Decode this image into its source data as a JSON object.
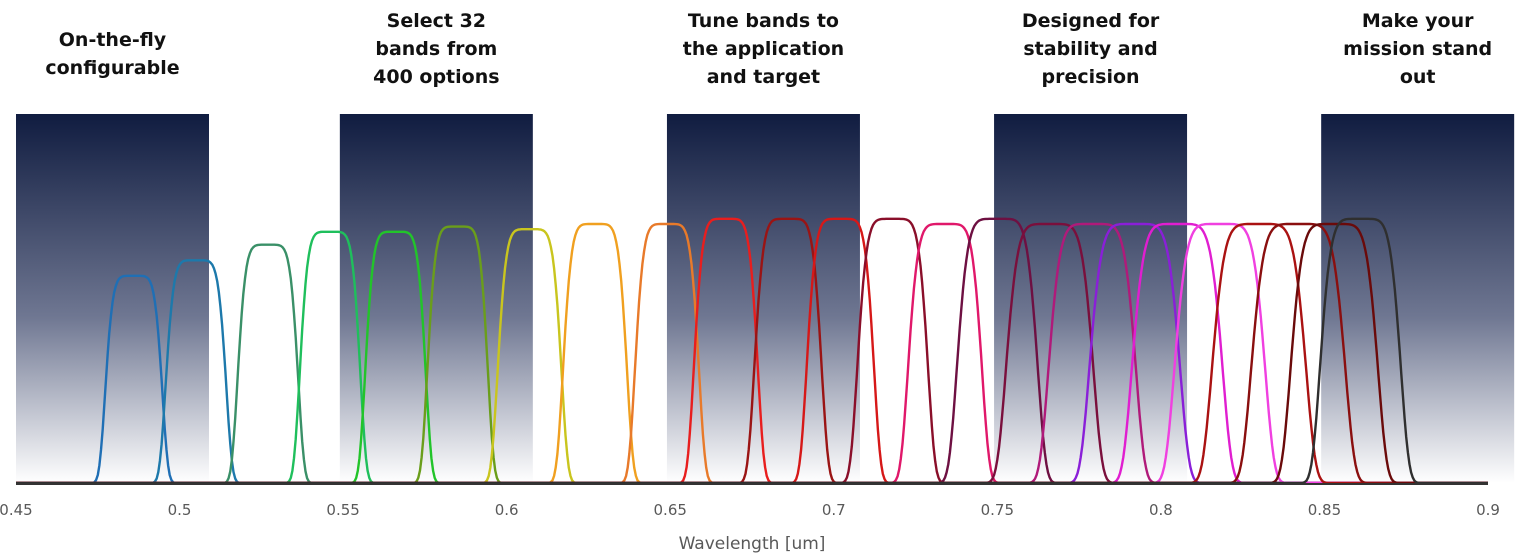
{
  "chart_data": {
    "type": "line",
    "title": "",
    "xlabel": "Wavelength [um]",
    "ylabel": "",
    "xlim": [
      0.45,
      0.9
    ],
    "ylim": [
      0,
      1.0
    ],
    "x_ticks": [
      "0.45",
      "0.5",
      "0.55",
      "0.6",
      "0.65",
      "0.7",
      "0.75",
      "0.8",
      "0.85",
      "0.9"
    ],
    "grid": false,
    "legend": "none",
    "feature_panels": [
      {
        "title_lines": [
          "On-the-fly",
          "configurable"
        ],
        "x_range": [
          0.45,
          0.509
        ]
      },
      {
        "title_lines": [
          "Select 32",
          "bands from",
          "400 options"
        ],
        "x_range": [
          0.549,
          0.608
        ]
      },
      {
        "title_lines": [
          "Tune bands to",
          "the application",
          "and target"
        ],
        "x_range": [
          0.649,
          0.708
        ]
      },
      {
        "title_lines": [
          "Designed for",
          "stability and",
          "precision"
        ],
        "x_range": [
          0.749,
          0.808
        ]
      },
      {
        "title_lines": [
          "Make your",
          "mission stand",
          "out"
        ],
        "x_range": [
          0.849,
          0.908
        ]
      }
    ],
    "series": [
      {
        "color": "#1f6fb5",
        "center": 0.486,
        "fwhm": 0.017,
        "peak": 0.8
      },
      {
        "color": "#1d79ab",
        "center": 0.505,
        "fwhm": 0.018,
        "peak": 0.86
      },
      {
        "color": "#3a9068",
        "center": 0.527,
        "fwhm": 0.018,
        "peak": 0.92
      },
      {
        "color": "#1fbf5c",
        "center": 0.546,
        "fwhm": 0.018,
        "peak": 0.97
      },
      {
        "color": "#22c42a",
        "center": 0.566,
        "fwhm": 0.018,
        "peak": 0.97
      },
      {
        "color": "#6a9e1b",
        "center": 0.585,
        "fwhm": 0.018,
        "peak": 0.99
      },
      {
        "color": "#c9c51e",
        "center": 0.607,
        "fwhm": 0.019,
        "peak": 0.98
      },
      {
        "color": "#f0a020",
        "center": 0.627,
        "fwhm": 0.019,
        "peak": 1.0
      },
      {
        "color": "#e87a2a",
        "center": 0.649,
        "fwhm": 0.019,
        "peak": 1.0
      },
      {
        "color": "#e81e1e",
        "center": 0.667,
        "fwhm": 0.019,
        "peak": 1.02
      },
      {
        "color": "#9a1414",
        "center": 0.686,
        "fwhm": 0.02,
        "peak": 1.02
      },
      {
        "color": "#d61818",
        "center": 0.702,
        "fwhm": 0.02,
        "peak": 1.02
      },
      {
        "color": "#8a0f2a",
        "center": 0.718,
        "fwhm": 0.021,
        "peak": 1.02
      },
      {
        "color": "#e0186a",
        "center": 0.734,
        "fwhm": 0.022,
        "peak": 1.0
      },
      {
        "color": "#6e1042",
        "center": 0.75,
        "fwhm": 0.024,
        "peak": 1.02
      },
      {
        "color": "#7a0f3c",
        "center": 0.766,
        "fwhm": 0.026,
        "peak": 1.0
      },
      {
        "color": "#b01a7a",
        "center": 0.779,
        "fwhm": 0.026,
        "peak": 1.0
      },
      {
        "color": "#8a1fd8",
        "center": 0.792,
        "fwhm": 0.027,
        "peak": 1.0
      },
      {
        "color": "#e01ed0",
        "center": 0.805,
        "fwhm": 0.027,
        "peak": 1.0
      },
      {
        "color": "#f040e0",
        "center": 0.818,
        "fwhm": 0.027,
        "peak": 1.0
      },
      {
        "color": "#aa1212",
        "center": 0.83,
        "fwhm": 0.028,
        "peak": 1.0
      },
      {
        "color": "#8a0f0f",
        "center": 0.842,
        "fwhm": 0.028,
        "peak": 1.0
      },
      {
        "color": "#6a0a0a",
        "center": 0.853,
        "fwhm": 0.026,
        "peak": 1.0
      },
      {
        "color": "#2f2f2f",
        "center": 0.861,
        "fwhm": 0.024,
        "peak": 1.02
      }
    ]
  }
}
